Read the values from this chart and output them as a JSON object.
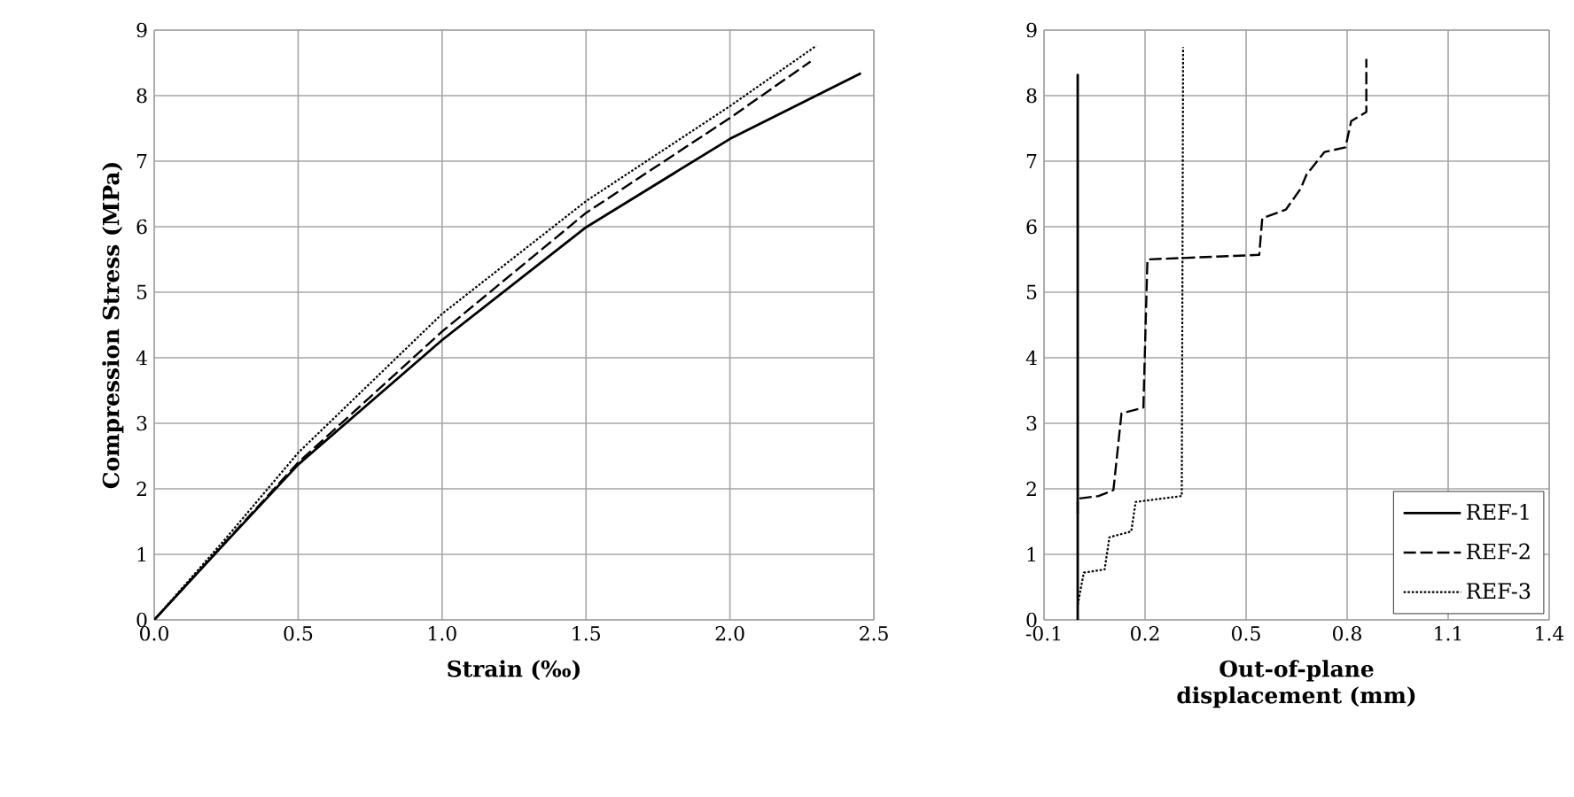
{
  "chart_data": [
    {
      "type": "line",
      "xlabel": "Strain (‰)",
      "ylabel": "Compression Stress (MPa)",
      "xlim": [
        0,
        2.5
      ],
      "ylim": [
        0,
        9
      ],
      "xticks": [
        {
          "value": 0,
          "label": "0.0"
        },
        0.5,
        {
          "value": 1,
          "label": "1.0"
        },
        1.5,
        {
          "value": 2,
          "label": "2.0"
        },
        2.5
      ],
      "yticks": [
        0,
        1,
        2,
        3,
        4,
        5,
        6,
        7,
        8,
        9
      ],
      "grid": true,
      "legend": false,
      "series": [
        {
          "color": "#000000",
          "line_style": "solid",
          "x": [
            0,
            0.25,
            0.5,
            1.0,
            1.5,
            2.0,
            2.455
          ],
          "values": [
            0,
            1.19,
            2.37,
            4.27,
            5.99,
            7.34,
            8.34
          ]
        },
        {
          "color": "#000000",
          "line_style": "dashed",
          "x": [
            0,
            0.25,
            0.5,
            1.0,
            1.5,
            2.0,
            2.28
          ],
          "values": [
            0,
            1.2,
            2.4,
            4.4,
            6.21,
            7.66,
            8.52
          ]
        },
        {
          "color": "#000000",
          "line_style": "dotted",
          "x": [
            0,
            0.25,
            0.5,
            1.0,
            1.5,
            2.0,
            2.3
          ],
          "values": [
            0,
            1.25,
            2.55,
            4.67,
            6.39,
            7.84,
            8.76
          ]
        }
      ]
    },
    {
      "type": "line",
      "xlabel": "Out-of-plane displacement (mm)",
      "xlim": [
        -0.1,
        1.4
      ],
      "ylim": [
        0,
        9
      ],
      "xticks": [
        -0.1,
        0.2,
        0.5,
        0.8,
        1.1,
        1.4
      ],
      "yticks": [
        0,
        1,
        2,
        3,
        4,
        5,
        6,
        7,
        8,
        9
      ],
      "grid": true,
      "legend": "bottom right",
      "series": [
        {
          "name": "REF-1",
          "color": "#000000",
          "line_style": "solid",
          "x": [
            0,
            0
          ],
          "values": [
            0,
            8.33
          ]
        },
        {
          "name": "REF-2",
          "color": "#000000",
          "line_style": "dashed",
          "x": [
            0,
            0,
            0.062,
            0.106,
            0.13,
            0.195,
            0.207,
            0.539,
            0.548,
            0.618,
            0.662,
            0.68,
            0.733,
            0.795,
            0.812,
            0.857,
            0.857
          ],
          "values": [
            1.62,
            1.85,
            1.89,
            1.98,
            3.15,
            3.24,
            5.5,
            5.57,
            6.13,
            6.26,
            6.58,
            6.8,
            7.14,
            7.21,
            7.61,
            7.75,
            8.56
          ]
        },
        {
          "name": "REF-3",
          "color": "#000000",
          "line_style": "dotted",
          "x": [
            0,
            0.018,
            0.08,
            0.094,
            0.159,
            0.172,
            0.309,
            0.313
          ],
          "values": [
            0.23,
            0.72,
            0.77,
            1.26,
            1.35,
            1.8,
            1.89,
            8.74
          ]
        }
      ]
    }
  ]
}
